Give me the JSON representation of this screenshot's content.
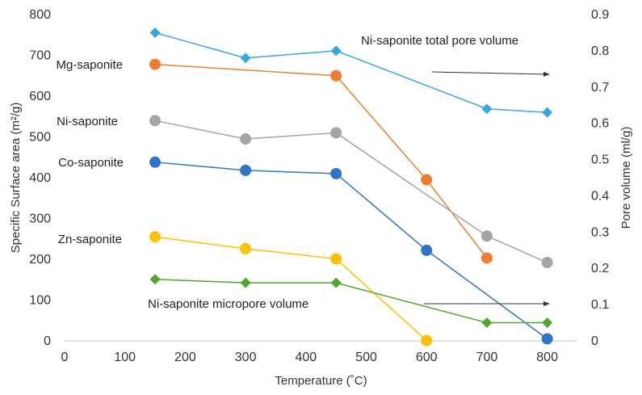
{
  "chart_data": {
    "type": "line",
    "xlabel": "Temperature (˚C)",
    "ylabel_left": "Specific Surface area (m²/g)",
    "ylabel_right": "Pore volume (ml/g)",
    "xlim": [
      0,
      850
    ],
    "ylim_left": [
      0,
      800
    ],
    "ylim_right": [
      0,
      0.9
    ],
    "x_ticks": [
      "0",
      "100",
      "200",
      "300",
      "400",
      "500",
      "600",
      "700",
      "800"
    ],
    "y_left_ticks": [
      "0",
      "100",
      "200",
      "300",
      "400",
      "500",
      "600",
      "700",
      "800"
    ],
    "y_right_ticks": [
      "0",
      "0.1",
      "0.2",
      "0.3",
      "0.4",
      "0.5",
      "0.6",
      "0.7",
      "0.8",
      "0.9"
    ],
    "grid": false,
    "series": [
      {
        "name": "Mg-saponite",
        "axis": "left",
        "marker": "circle",
        "color": "#ED7D31",
        "points": [
          [
            150,
            678
          ],
          [
            450,
            650
          ],
          [
            600,
            395
          ],
          [
            700,
            203
          ]
        ]
      },
      {
        "name": "Ni-saponite",
        "axis": "left",
        "marker": "circle",
        "color": "#A5A5A5",
        "points": [
          [
            150,
            540
          ],
          [
            300,
            495
          ],
          [
            450,
            510
          ],
          [
            700,
            257
          ],
          [
            800,
            192
          ]
        ]
      },
      {
        "name": "Co-saponite",
        "axis": "left",
        "marker": "circle",
        "color": "#2E75C6",
        "points": [
          [
            150,
            438
          ],
          [
            300,
            418
          ],
          [
            450,
            410
          ],
          [
            600,
            222
          ],
          [
            800,
            5
          ]
        ]
      },
      {
        "name": "Zn-saponite",
        "axis": "left",
        "marker": "circle",
        "color": "#FFC000",
        "points": [
          [
            150,
            255
          ],
          [
            300,
            226
          ],
          [
            450,
            201
          ],
          [
            600,
            1
          ]
        ]
      },
      {
        "name": "Ni-saponite total pore volume",
        "axis": "right",
        "marker": "diamond",
        "color": "#39A7DB",
        "points": [
          [
            150,
            0.85
          ],
          [
            300,
            0.78
          ],
          [
            450,
            0.8
          ],
          [
            700,
            0.64
          ],
          [
            800,
            0.63
          ]
        ]
      },
      {
        "name": "Ni-saponite micropore volume",
        "axis": "right",
        "marker": "diamond",
        "color": "#4EA72E",
        "points": [
          [
            150,
            0.17
          ],
          [
            300,
            0.16
          ],
          [
            450,
            0.16
          ],
          [
            700,
            0.05
          ],
          [
            800,
            0.05
          ]
        ]
      }
    ],
    "annotations": [
      {
        "text": "Mg-saponite",
        "series": 0
      },
      {
        "text": "Ni-saponite",
        "series": 1
      },
      {
        "text": "Co-saponite",
        "series": 2
      },
      {
        "text": "Zn-saponite",
        "series": 3
      },
      {
        "text": "Ni-saponite total pore volume",
        "series": 4,
        "arrow": "right"
      },
      {
        "text": "Ni-saponite micropore volume",
        "series": 5,
        "arrow": "right"
      }
    ]
  }
}
